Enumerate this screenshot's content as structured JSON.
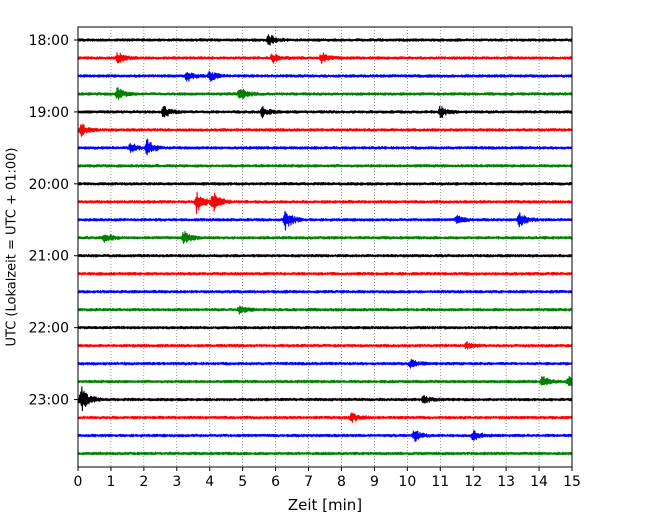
{
  "chart_data": {
    "type": "line",
    "title": "",
    "xlabel": "Zeit  [min]",
    "ylabel": "UTC (Lokalzeit = UTC + 01:00)",
    "xlim": [
      0,
      15
    ],
    "x_ticks": [
      "0",
      "1",
      "2",
      "3",
      "4",
      "5",
      "6",
      "7",
      "8",
      "9",
      "10",
      "11",
      "12",
      "13",
      "14",
      "15"
    ],
    "y_ticks": [
      "18:00",
      "19:00",
      "20:00",
      "21:00",
      "22:00",
      "23:00"
    ],
    "grid": "vertical dotted lines at each minute",
    "trace_interval_min": 15,
    "start_time": "18:00",
    "trace_color_cycle": [
      "#000000",
      "#ff0000",
      "#0000ff",
      "#008000"
    ],
    "traces": [
      {
        "time": "18:00",
        "events": [
          {
            "t": 5.8,
            "amp": 6
          }
        ]
      },
      {
        "time": "18:15",
        "events": [
          {
            "t": 1.2,
            "amp": 6
          },
          {
            "t": 5.9,
            "amp": 5
          },
          {
            "t": 7.4,
            "amp": 5
          }
        ]
      },
      {
        "time": "18:30",
        "events": [
          {
            "t": 3.3,
            "amp": 6
          },
          {
            "t": 4.0,
            "amp": 5
          }
        ]
      },
      {
        "time": "18:45",
        "events": [
          {
            "t": 1.2,
            "amp": 6
          },
          {
            "t": 4.9,
            "amp": 7
          }
        ]
      },
      {
        "time": "19:00",
        "events": [
          {
            "t": 2.6,
            "amp": 6
          },
          {
            "t": 5.6,
            "amp": 5
          },
          {
            "t": 11.0,
            "amp": 6
          }
        ]
      },
      {
        "time": "19:15",
        "events": [
          {
            "t": 0.1,
            "amp": 6
          }
        ]
      },
      {
        "time": "19:30",
        "events": [
          {
            "t": 1.6,
            "amp": 5
          },
          {
            "t": 2.1,
            "amp": 8
          }
        ]
      },
      {
        "time": "19:45",
        "events": []
      },
      {
        "time": "20:00",
        "events": []
      },
      {
        "time": "20:15",
        "events": [
          {
            "t": 3.6,
            "amp": 11
          },
          {
            "t": 4.1,
            "amp": 10
          }
        ]
      },
      {
        "time": "20:30",
        "events": [
          {
            "t": 6.3,
            "amp": 10
          },
          {
            "t": 11.5,
            "amp": 4
          },
          {
            "t": 13.4,
            "amp": 7
          }
        ]
      },
      {
        "time": "20:45",
        "events": [
          {
            "t": 0.8,
            "amp": 5
          },
          {
            "t": 3.2,
            "amp": 7
          }
        ]
      },
      {
        "time": "21:00",
        "events": []
      },
      {
        "time": "21:15",
        "events": []
      },
      {
        "time": "21:30",
        "events": []
      },
      {
        "time": "21:45",
        "events": [
          {
            "t": 4.9,
            "amp": 4
          }
        ]
      },
      {
        "time": "22:00",
        "events": []
      },
      {
        "time": "22:15",
        "events": [
          {
            "t": 11.8,
            "amp": 3
          }
        ]
      },
      {
        "time": "22:30",
        "events": [
          {
            "t": 10.1,
            "amp": 4
          }
        ]
      },
      {
        "time": "22:45",
        "events": [
          {
            "t": 14.1,
            "amp": 5
          },
          {
            "t": 14.9,
            "amp": 5
          }
        ]
      },
      {
        "time": "23:00",
        "events": [
          {
            "t": 0.1,
            "amp": 14
          },
          {
            "t": 10.5,
            "amp": 4
          }
        ]
      },
      {
        "time": "23:15",
        "events": [
          {
            "t": 8.3,
            "amp": 5
          }
        ]
      },
      {
        "time": "23:30",
        "events": [
          {
            "t": 10.2,
            "amp": 6
          },
          {
            "t": 12.0,
            "amp": 5
          }
        ]
      },
      {
        "time": "23:45",
        "events": []
      }
    ]
  }
}
